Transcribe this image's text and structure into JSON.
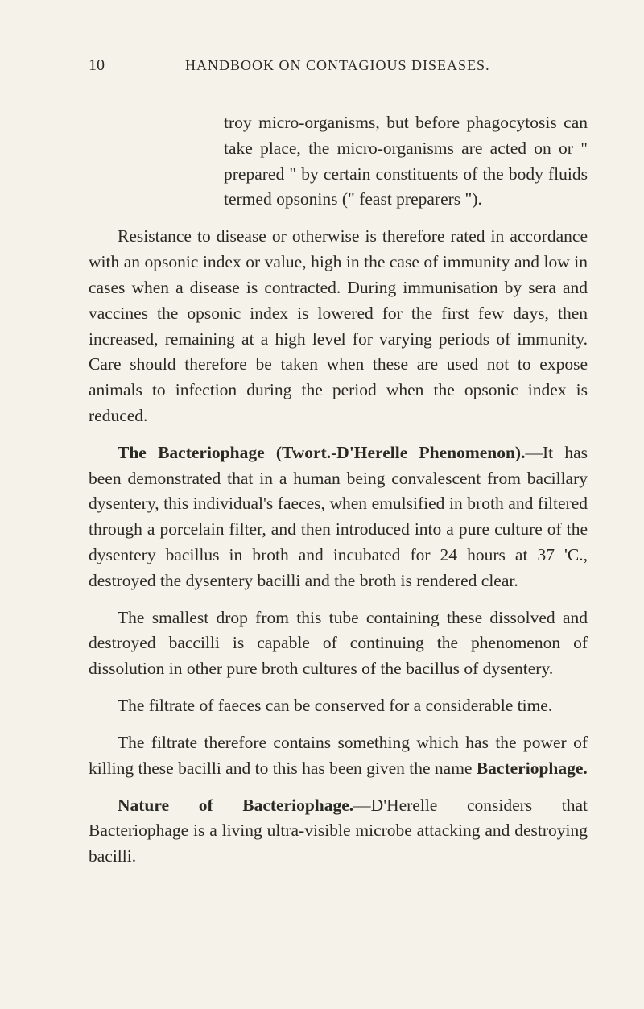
{
  "page": {
    "number": "10",
    "running_title": "HANDBOOK ON CONTAGIOUS DISEASES.",
    "typography": {
      "body_fontsize_pt": 21.5,
      "header_fontsize_pt": 18,
      "line_height": 1.48,
      "text_color": "#2a2a24",
      "background_color": "#f5f2e9",
      "font_family": "Century Schoolbook / Georgia serif"
    },
    "paragraphs": [
      {
        "style": "hanging-sub",
        "text": "troy micro-organisms, but before phagocy­tosis can take place, the micro-organisms are acted on or \" prepared \" by certain consti­tuents of the body fluids termed opsonins (\" feast preparers \")."
      },
      {
        "style": "indent",
        "text": "Resistance to disease or otherwise is therefore rated in accordance with an opsonic index or value, high in the case of immunity and low in cases when a disease is contracted. During immunisation by sera and vaccines the opsonic index is lowered for the first few days, then increased, remaining at a high level for varying periods of immunity. Care should therefore be taken when these are used not to expose animals to infection during the period when the opsonic index is reduced."
      },
      {
        "style": "indent",
        "lead_bold": "The Bacteriophage (Twort.-D'Herelle Pheno­menon).",
        "text": "—It has been demonstrated that in a human being convalescent from bacillary dysentery, this individual's faeces, when emulsified in broth and filtered through a porcelain filter, and then introduced into a pure culture of the dysentery bacillus in broth and incubated for 24 hours at 37 'C., destroyed the dysentery bacilli and the broth is rendered clear."
      },
      {
        "style": "indent",
        "text": "The smallest drop from this tube containing these dissolved and destroyed baccilli is capable of continu­ing the phenomenon of dissolution in other pure broth cultures of the bacillus of dysentery."
      },
      {
        "style": "indent",
        "text_pre": "The filtrate of faeces can be conserved for a consi­derable time."
      },
      {
        "style": "indent",
        "text_pre2": "The filtrate therefore contains something which has the power of killing these bacilli and to this has been given the name ",
        "bold_tail": "Bacteriophage."
      },
      {
        "style": "indent",
        "lead_bold2": "Nature of Bacteriophage.",
        "text2": "—D'Herelle considers that Bacteriophage is a living ultra-visible microbe attacking and destroying bacilli."
      }
    ]
  }
}
